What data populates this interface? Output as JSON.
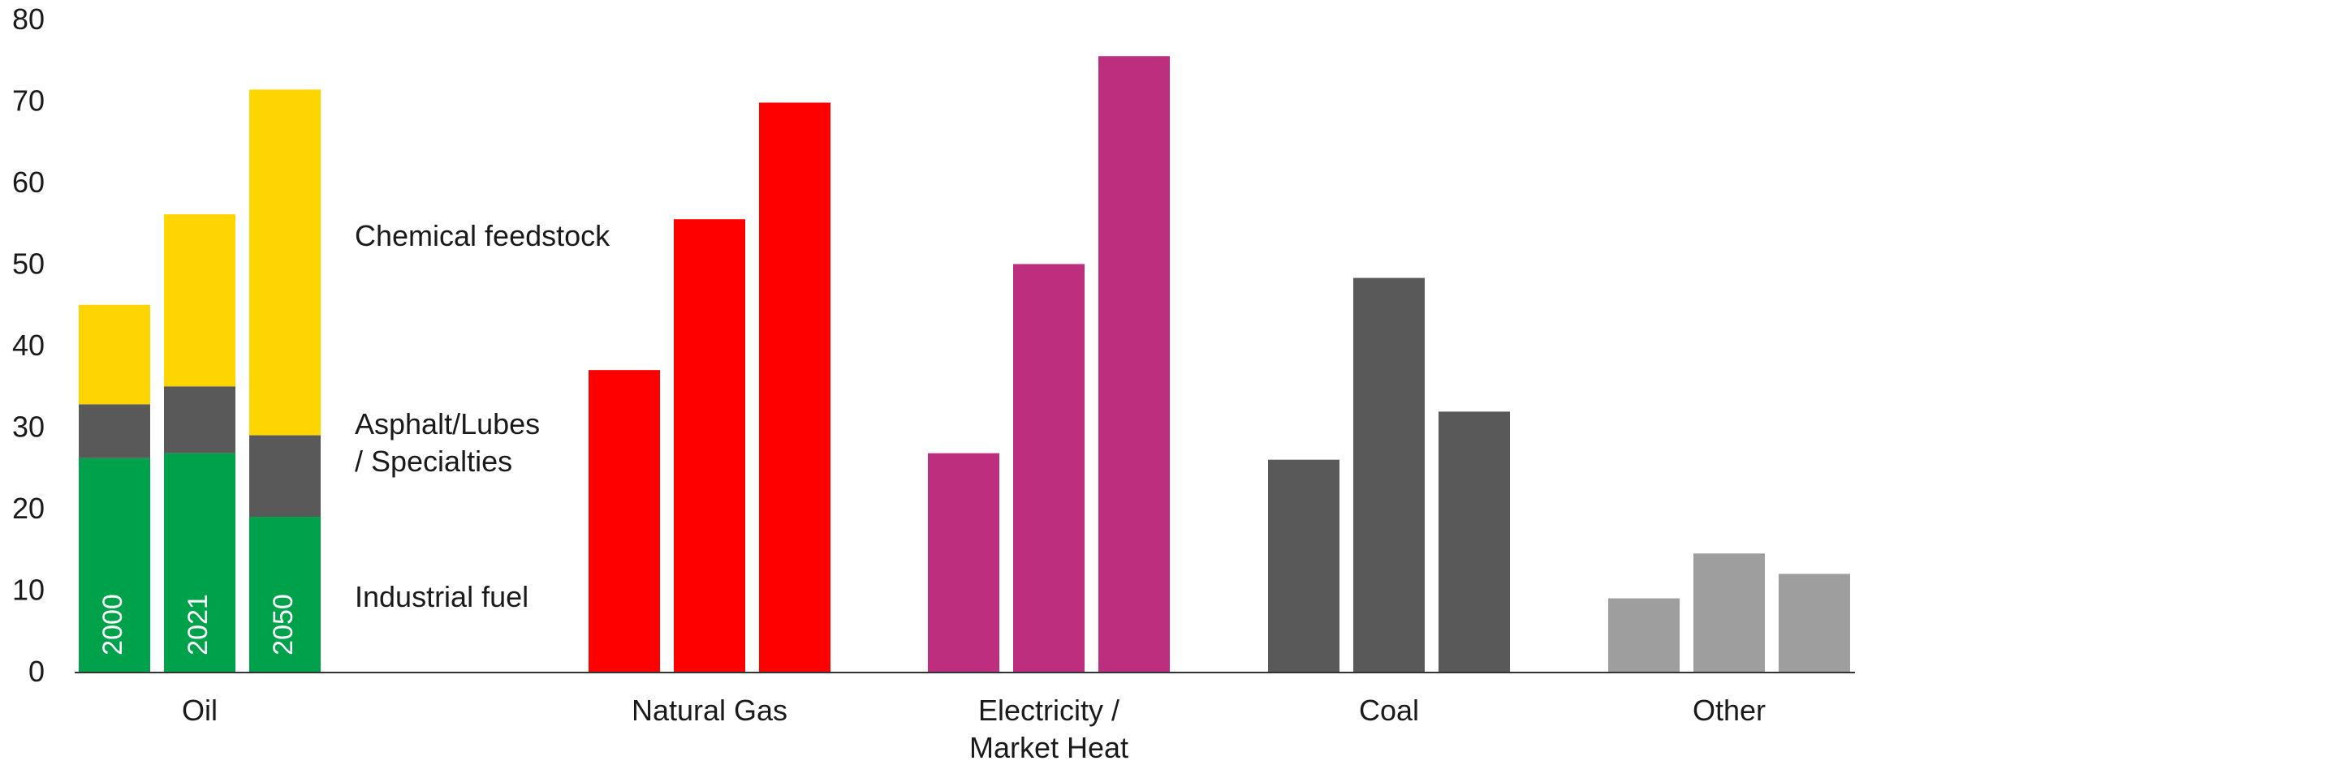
{
  "chart_data": {
    "type": "bar",
    "ylim": [
      0,
      80
    ],
    "yticks": [
      "0",
      "10",
      "20",
      "30",
      "40",
      "50",
      "60",
      "70",
      "80"
    ],
    "years": [
      "2000",
      "2021",
      "2050"
    ],
    "categories": [
      {
        "label": [
          "Oil"
        ],
        "stacked": true
      },
      {
        "label": [
          "Natural Gas"
        ],
        "values": [
          37,
          55.5,
          69.8
        ],
        "color": "#ff0000"
      },
      {
        "label": [
          "Electricity /",
          "Market Heat"
        ],
        "values": [
          26.8,
          50,
          75.5
        ],
        "color": "#bd2e7e"
      },
      {
        "label": [
          "Coal"
        ],
        "values": [
          26,
          48.3,
          31.9
        ],
        "color": "#595959"
      },
      {
        "label": [
          "Other"
        ],
        "values": [
          9,
          14.5,
          12
        ],
        "color": "#9e9e9e"
      }
    ],
    "oil_series": [
      {
        "name": [
          "Industrial fuel"
        ],
        "values": [
          26.2,
          26.8,
          19
        ],
        "color": "#00a14b"
      },
      {
        "name": [
          "Asphalt/Lubes",
          "/ Specialties"
        ],
        "values": [
          6.6,
          8.2,
          10
        ],
        "color": "#595959"
      },
      {
        "name": [
          "Chemical feedstock"
        ],
        "values": [
          12.2,
          21.1,
          42.4
        ],
        "color": "#ffd500"
      }
    ],
    "axis_color": "#333333"
  }
}
